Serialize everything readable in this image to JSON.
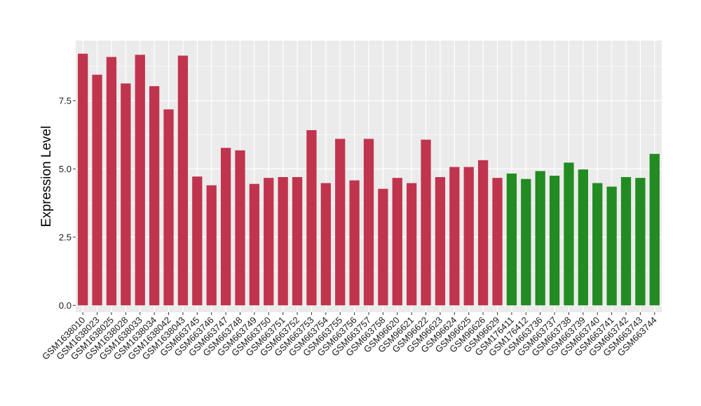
{
  "chart_data": {
    "type": "bar",
    "xlabel": "",
    "ylabel": "Expression Level",
    "ylim": [
      -0.25,
      9.7
    ],
    "yticks": [
      0.0,
      2.5,
      5.0,
      7.5
    ],
    "ytick_labels": [
      "0.0",
      "2.5",
      "5.0",
      "7.5"
    ],
    "grid": true,
    "legend": "none",
    "colors": {
      "panel_background": "#EBEBEB",
      "grid_major": "#FFFFFF",
      "group_red": "#C0344D",
      "group_green": "#228B22"
    },
    "categories": [
      "GSM1638010",
      "GSM1638023",
      "GSM1638025",
      "GSM1638028",
      "GSM1638033",
      "GSM1638034",
      "GSM1638042",
      "GSM1638043",
      "GSM663745",
      "GSM663746",
      "GSM663747",
      "GSM663748",
      "GSM663749",
      "GSM663750",
      "GSM663751",
      "GSM663752",
      "GSM663753",
      "GSM663754",
      "GSM663755",
      "GSM663756",
      "GSM663757",
      "GSM663758",
      "GSM96620",
      "GSM96621",
      "GSM96622",
      "GSM96623",
      "GSM96624",
      "GSM96625",
      "GSM96626",
      "GSM96629",
      "GSM176411",
      "GSM176412",
      "GSM663736",
      "GSM663737",
      "GSM663738",
      "GSM663739",
      "GSM663740",
      "GSM663741",
      "GSM663742",
      "GSM663743",
      "GSM663744"
    ],
    "values": [
      9.22,
      8.45,
      9.1,
      8.13,
      9.18,
      8.03,
      7.18,
      9.15,
      4.72,
      4.4,
      5.77,
      5.68,
      4.45,
      4.67,
      4.7,
      4.7,
      6.42,
      4.48,
      6.1,
      4.58,
      6.1,
      4.27,
      4.67,
      4.48,
      6.07,
      4.7,
      5.07,
      5.07,
      5.32,
      4.67,
      4.83,
      4.63,
      4.92,
      4.75,
      5.23,
      4.98,
      4.48,
      4.35,
      4.7,
      4.67,
      5.55
    ],
    "groups": [
      "red",
      "red",
      "red",
      "red",
      "red",
      "red",
      "red",
      "red",
      "red",
      "red",
      "red",
      "red",
      "red",
      "red",
      "red",
      "red",
      "red",
      "red",
      "red",
      "red",
      "red",
      "red",
      "red",
      "red",
      "red",
      "red",
      "red",
      "red",
      "red",
      "red",
      "green",
      "green",
      "green",
      "green",
      "green",
      "green",
      "green",
      "green",
      "green",
      "green",
      "green"
    ]
  }
}
